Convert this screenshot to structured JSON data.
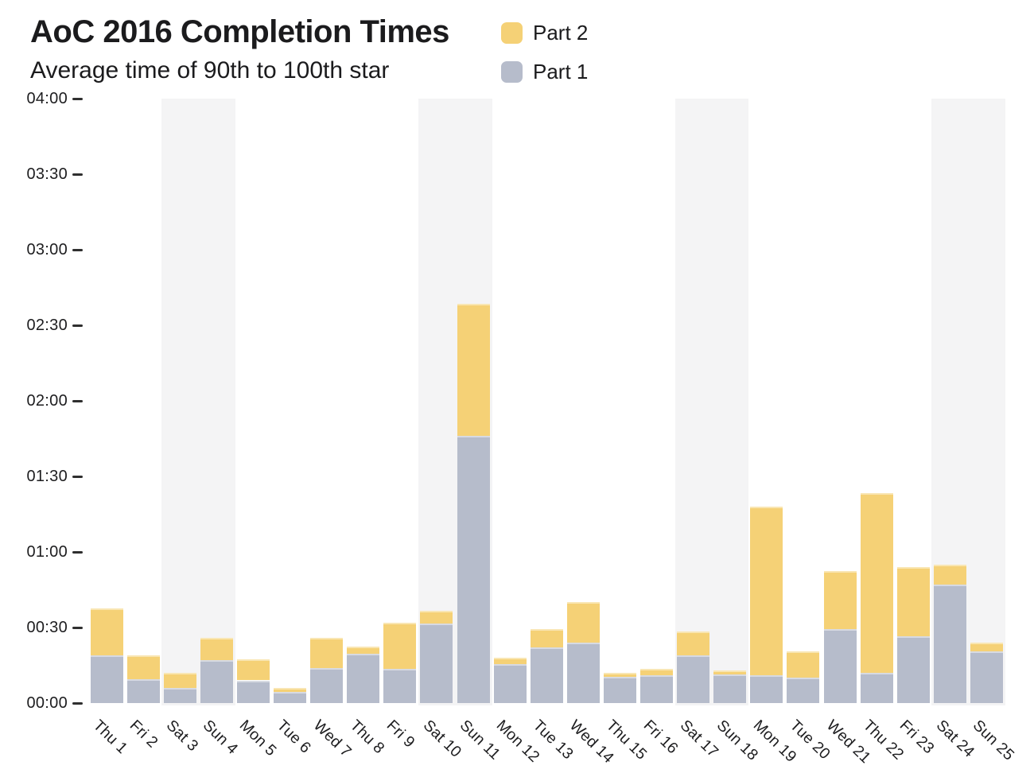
{
  "header": {
    "title": "AoC 2016 Completion Times",
    "subtitle": "Average time of 90th to 100th star"
  },
  "legend": {
    "items": [
      {
        "label": "Part 2",
        "series": "part2",
        "color": "#F5D176"
      },
      {
        "label": "Part 1",
        "series": "part1",
        "color": "#B6BCCB"
      }
    ]
  },
  "chart_data": {
    "type": "bar",
    "stacked": true,
    "orientation": "vertical",
    "title": "AoC 2016 Completion Times",
    "subtitle": "Average time of 90th to 100th star",
    "categories": [
      "Thu 1",
      "Fri 2",
      "Sat 3",
      "Sun 4",
      "Mon 5",
      "Tue 6",
      "Wed 7",
      "Thu 8",
      "Fri 9",
      "Sat 10",
      "Sun 11",
      "Mon 12",
      "Tue 13",
      "Wed 14",
      "Thu 15",
      "Fri 16",
      "Sat 17",
      "Sun 18",
      "Mon 19",
      "Tue 20",
      "Wed 21",
      "Thu 22",
      "Fri 23",
      "Sat 24",
      "Sun 25"
    ],
    "series": [
      {
        "name": "Part 1",
        "color": "#B6BCCB",
        "unit": "minutes",
        "values": [
          19,
          9.5,
          6,
          17,
          9,
          4.5,
          14,
          19.5,
          13.5,
          31.5,
          106,
          15.5,
          22,
          24,
          10.5,
          11,
          19,
          11.5,
          11,
          10,
          29.5,
          12,
          26.5,
          47,
          20.5
        ]
      },
      {
        "name": "Part 2",
        "color": "#F5D176",
        "unit": "minutes",
        "values": [
          18.5,
          9.5,
          6,
          9,
          8.5,
          1.5,
          12,
          3,
          18.5,
          5,
          52.5,
          2.5,
          7.5,
          16,
          1.5,
          2.5,
          9.5,
          1.5,
          67,
          10.5,
          23,
          71.5,
          27.5,
          8,
          3.5
        ]
      }
    ],
    "y_axis": {
      "tick_labels": [
        "00:00",
        "00:30",
        "01:00",
        "01:30",
        "02:00",
        "02:30",
        "03:00",
        "03:30",
        "04:00"
      ],
      "min_minutes": 0,
      "max_minutes": 240,
      "tick_step_minutes": 30
    },
    "weekend_shading": {
      "color": "#F4F4F5",
      "shaded_categories": [
        "Sat 3",
        "Sun 4",
        "Sat 10",
        "Sun 11",
        "Sat 17",
        "Sun 18",
        "Sat 24",
        "Sun 25"
      ]
    },
    "grid": false,
    "legend_position": "top"
  },
  "colors": {
    "text": "#1B1B1D",
    "tick_mark": "#2F2F2F",
    "background": "#FFFFFF"
  }
}
